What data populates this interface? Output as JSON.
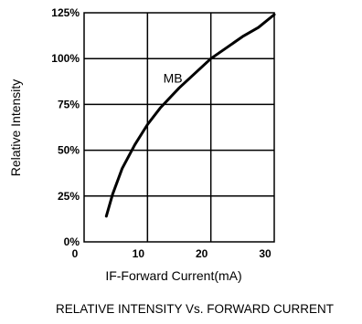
{
  "chart_data": {
    "type": "line",
    "title": "RELATIVE INTENSITY Vs. FORWARD CURRENT",
    "xlabel": "IF-Forward Current(mA)",
    "ylabel": "Relative Intensity",
    "xlim": [
      0,
      30
    ],
    "ylim": [
      0,
      125
    ],
    "x_ticks": [
      0,
      10,
      20,
      30
    ],
    "x_tick_labels": [
      "0",
      "10",
      "20",
      "30"
    ],
    "y_ticks": [
      0,
      25,
      50,
      75,
      100,
      125
    ],
    "y_tick_labels": [
      "0%",
      "25%",
      "50%",
      "75%",
      "100%",
      "125%"
    ],
    "grid": true,
    "series": [
      {
        "name": "MB",
        "x": [
          3.5,
          4.5,
          6,
          8,
          10,
          12,
          15,
          17.5,
          20,
          22.5,
          25,
          27.5,
          30
        ],
        "values": [
          14,
          26,
          40,
          53,
          64,
          73,
          84,
          92,
          100,
          106,
          112,
          117,
          124
        ]
      }
    ],
    "annotations": [
      {
        "text": "MB",
        "x": 14,
        "y": 87
      }
    ]
  }
}
